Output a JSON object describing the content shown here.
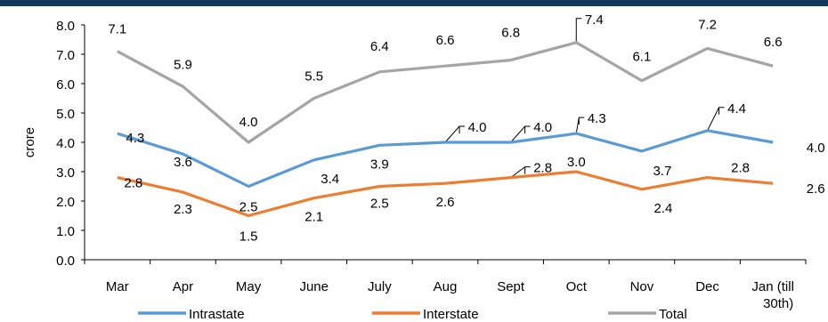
{
  "chart_data": {
    "type": "line",
    "ylabel": "crore",
    "ylim": [
      0,
      8
    ],
    "yticks": [
      "0.0",
      "1.0",
      "2.0",
      "3.0",
      "4.0",
      "5.0",
      "6.0",
      "7.0",
      "8.0"
    ],
    "categories": [
      "Mar",
      "Apr",
      "May",
      "June",
      "July",
      "Aug",
      "Sept",
      "Oct",
      "Nov",
      "Dec",
      "Jan (till 30th)"
    ],
    "legend_position": "bottom",
    "gridlines": false,
    "series": [
      {
        "name": "Intrastate",
        "color": "#5b9bd5",
        "values": [
          4.3,
          3.6,
          2.5,
          3.4,
          3.9,
          4.0,
          4.0,
          4.3,
          3.7,
          4.4,
          4.0
        ],
        "labels": [
          "4.3",
          "3.6",
          "2.5",
          "3.4",
          "3.9",
          "4.0",
          "4.0",
          "4.3",
          "3.7",
          "4.4",
          "4.0"
        ]
      },
      {
        "name": "Interstate",
        "color": "#ed7d31",
        "values": [
          2.8,
          2.3,
          1.5,
          2.1,
          2.5,
          2.6,
          2.8,
          3.0,
          2.4,
          2.8,
          2.6
        ],
        "labels": [
          "2.8",
          "2.3",
          "1.5",
          "2.1",
          "2.5",
          "2.6",
          "2.8",
          "3.0",
          "2.4",
          "2.8",
          "2.6"
        ]
      },
      {
        "name": "Total",
        "color": "#a5a5a5",
        "values": [
          7.1,
          5.9,
          4.0,
          5.5,
          6.4,
          6.6,
          6.8,
          7.4,
          6.1,
          7.2,
          6.6
        ],
        "labels": [
          "7.1",
          "5.9",
          "4.0",
          "5.5",
          "6.4",
          "6.6",
          "6.8",
          "7.4",
          "6.1",
          "7.2",
          "6.6"
        ]
      }
    ]
  }
}
